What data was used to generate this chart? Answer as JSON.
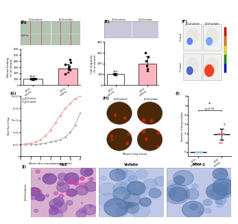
{
  "bg_color": "#ffffff",
  "panel_D": {
    "label": "(D)",
    "bar_values": [
      100,
      280
    ],
    "bar_colors": [
      "#ffffff",
      "#ffb6c1"
    ],
    "bar_edge": "#000000",
    "ylabel": "Wound healing\n(% of control)",
    "ylim": [
      0,
      600
    ],
    "yticks": [
      0,
      100,
      200,
      300,
      400,
      500,
      600
    ],
    "scatter_vehicle": [
      100,
      100,
      100,
      100,
      100,
      100
    ],
    "scatter_visfatin": [
      180,
      250,
      280,
      310,
      350,
      380,
      420
    ],
    "img_color": "#b0c4b0",
    "line_color": "#cc4466",
    "col_labels": [
      "JJ012/vehicle",
      "JJ012/visfatin"
    ],
    "row_labels": [
      "0 hr",
      "24 hr"
    ]
  },
  "panel_E": {
    "label": "(E)",
    "bar_values": [
      100,
      200
    ],
    "bar_colors": [
      "#ffffff",
      "#ffb6c1"
    ],
    "bar_edge": "#000000",
    "ylabel": "Cell migration (% of control)",
    "ylim": [
      0,
      400
    ],
    "yticks": [
      0,
      100,
      200,
      300,
      400
    ],
    "scatter_vehicle": [
      100,
      100,
      100,
      100
    ],
    "scatter_visfatin": [
      150,
      180,
      220,
      260,
      300
    ],
    "img_color": "#c8c8d8",
    "col_labels": [
      "JJ012/vehicle",
      "JJ012/visfatin"
    ]
  },
  "panel_F": {
    "label": "(F)",
    "col_labels": [
      "JJ012/vehicle",
      "JJ012/visfatin"
    ],
    "row_labels": [
      "4 week",
      "12 week"
    ],
    "mouse_color": "#f5f5f5",
    "spot_colors_row0": [
      "#4477ff",
      "#6699ff"
    ],
    "spot_colors_row1": [
      "#3355cc",
      "#ff2200"
    ],
    "cbar_colors": [
      "#ff0000",
      "#ff8800",
      "#ffff00",
      "#00aa00",
      "#0000ff"
    ]
  },
  "panel_G": {
    "label": "(G)",
    "xlabel": "Weeks after transplantation (week)",
    "ylabel": "Total flux of lug",
    "legend": [
      "JJ012/vehicle",
      "JJ012/visfatin"
    ],
    "x": [
      0,
      1,
      2,
      3,
      4,
      5,
      6,
      7,
      8,
      9,
      10,
      11,
      12
    ],
    "y_vehicle": [
      50000000000000.0,
      50000000000000.0,
      50000000000000.0,
      50000000000000.0,
      52000000000000.0,
      55000000000000.0,
      60000000000000.0,
      65000000000000.0,
      70000000000000.0,
      80000000000000.0,
      100000000000000.0,
      130000000000000.0,
      180000000000000.0
    ],
    "y_visfatin": [
      50000000000000.0,
      52000000000000.0,
      55000000000000.0,
      60000000000000.0,
      70000000000000.0,
      85000000000000.0,
      110000000000000.0,
      140000000000000.0,
      170000000000000.0,
      200000000000000.0,
      220000000000000.0,
      240000000000000.0,
      250000000000000.0
    ],
    "ylim": [
      0,
      250000000000000.0
    ],
    "color_vehicle": "#aaaaaa",
    "color_visfatin": "#ff9999"
  },
  "panel_H": {
    "label": "(H)",
    "col_labels": [
      "JJ012/vehicle",
      "JJ012/visfatin"
    ],
    "img_label": "Mouse lung tissue",
    "lung_color": "#4a2808",
    "spot_color": "#cc2200"
  },
  "panel_I": {
    "label": "(I)",
    "ylabel": "Number of lung nodules",
    "ylim": [
      -0.5,
      6
    ],
    "yticks": [
      0,
      1,
      2,
      3,
      4,
      5,
      6
    ],
    "scatter_vehicle": [
      0,
      0,
      0,
      0,
      0,
      0,
      0,
      0
    ],
    "scatter_visfatin": [
      1,
      1,
      2,
      2,
      2,
      2,
      2,
      3
    ],
    "pvalue": "p=0.55",
    "dot_color_vehicle": "#87ceeb",
    "dot_color_visfatin": "#ff69b4"
  },
  "panel_J": {
    "label": "(J)",
    "col_labels": [
      "H&E",
      "Visfatin",
      "MMP-2"
    ],
    "row_label": "JJ012/vehicle",
    "col_colors": [
      "#d8b0d0",
      "#c0c8e8",
      "#c0c8e8"
    ]
  }
}
